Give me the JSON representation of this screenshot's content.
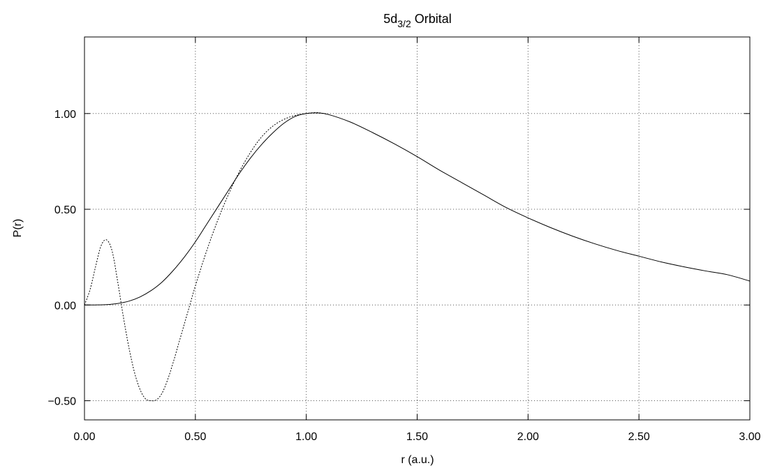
{
  "chart_data": {
    "type": "line",
    "title": {
      "main": "5d",
      "subscript": "3/2",
      "suffix": " Orbital"
    },
    "xlabel": "r (a.u.)",
    "ylabel": "P(r)",
    "xlim": [
      0,
      3
    ],
    "ylim": [
      -0.6,
      1.4
    ],
    "xticks": [
      0,
      0.5,
      1,
      1.5,
      2,
      2.5,
      3
    ],
    "xtick_labels": [
      "0.00",
      "0.50",
      "1.00",
      "1.50",
      "2.00",
      "2.50",
      "3.00"
    ],
    "yticks": [
      -0.5,
      0,
      0.5,
      1
    ],
    "ytick_labels": [
      "−0.50",
      "0.00",
      "0.50",
      "1.00"
    ],
    "grid": true,
    "series": [
      {
        "style": "solid",
        "color": "#000000",
        "x": [
          0,
          0.05,
          0.1,
          0.15,
          0.2,
          0.25,
          0.3,
          0.35,
          0.4,
          0.45,
          0.5,
          0.55,
          0.6,
          0.65,
          0.7,
          0.75,
          0.8,
          0.85,
          0.9,
          0.95,
          1.0,
          1.05,
          1.1,
          1.2,
          1.3,
          1.4,
          1.5,
          1.6,
          1.7,
          1.8,
          1.9,
          2.0,
          2.1,
          2.2,
          2.3,
          2.4,
          2.5,
          2.6,
          2.7,
          2.8,
          2.9,
          3.0
        ],
        "y": [
          0,
          0.0003,
          0.002,
          0.008,
          0.02,
          0.042,
          0.075,
          0.12,
          0.18,
          0.25,
          0.33,
          0.42,
          0.51,
          0.6,
          0.69,
          0.77,
          0.84,
          0.9,
          0.95,
          0.985,
          1.0,
          1.003,
          0.995,
          0.955,
          0.9,
          0.84,
          0.775,
          0.705,
          0.64,
          0.575,
          0.51,
          0.455,
          0.405,
          0.36,
          0.32,
          0.285,
          0.255,
          0.225,
          0.2,
          0.178,
          0.158,
          0.125
        ]
      },
      {
        "style": "dotted",
        "color": "#000000",
        "x": [
          0,
          0.025,
          0.05,
          0.075,
          0.1,
          0.125,
          0.15,
          0.175,
          0.2,
          0.225,
          0.25,
          0.275,
          0.3,
          0.325,
          0.35,
          0.375,
          0.4,
          0.425,
          0.45,
          0.475,
          0.5,
          0.55,
          0.6,
          0.65,
          0.7,
          0.75,
          0.8,
          0.85,
          0.9,
          0.95,
          1.0,
          1.05,
          1.1
        ],
        "y": [
          0,
          0.08,
          0.2,
          0.31,
          0.34,
          0.28,
          0.12,
          -0.06,
          -0.22,
          -0.35,
          -0.44,
          -0.49,
          -0.5,
          -0.495,
          -0.46,
          -0.39,
          -0.3,
          -0.2,
          -0.1,
          0.0,
          0.1,
          0.28,
          0.44,
          0.58,
          0.7,
          0.8,
          0.88,
          0.935,
          0.97,
          0.99,
          1.0,
          1.005,
          0.995
        ]
      }
    ]
  }
}
